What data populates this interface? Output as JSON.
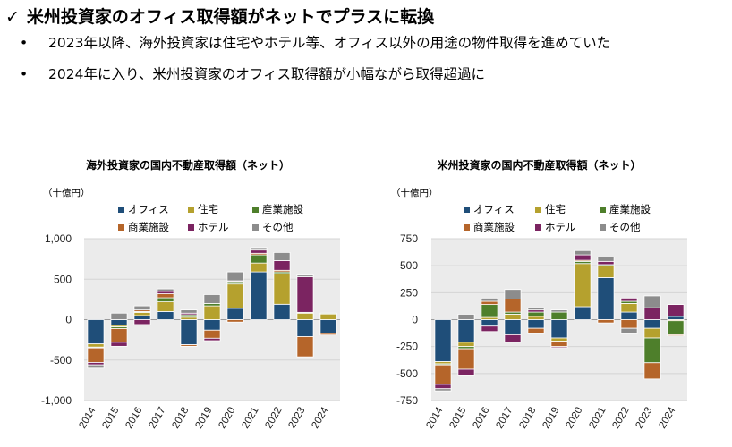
{
  "headline": {
    "check": "✓",
    "text": "米州投資家のオフィス取得額がネットでプラスに転換"
  },
  "bullets": [
    "2023年以降、海外投資家は住宅やホテル等、オフィス以外の用途の物件取得を進めていた",
    "2024年に入り、米州投資家のオフィス取得額が小幅ながら取得超過に"
  ],
  "bullet_marker": "•",
  "colors": {
    "office": "#1f4e79",
    "residential": "#b5a12e",
    "industrial": "#4e7f2b",
    "retail": "#b5652a",
    "hotel": "#7b2461",
    "other": "#8c8c8c",
    "plot_bg": "#ebebeb"
  },
  "chart_data": [
    {
      "type": "bar",
      "stacked": true,
      "title": "海外投資家の国内不動産取得額（ネット）",
      "unit": "（十億円）",
      "categories": [
        "2014",
        "2015",
        "2016",
        "2017",
        "2018",
        "2019",
        "2020",
        "2021",
        "2022",
        "2023",
        "2024"
      ],
      "ylim": [
        -1000,
        1000
      ],
      "ytick_values": [
        -1000,
        -500,
        0,
        500,
        1000
      ],
      "ytick_labels": [
        "-1,000",
        "-500",
        "0",
        "500",
        "1,000"
      ],
      "legend": [
        "オフィス",
        "住宅",
        "産業施設",
        "商業施設",
        "ホテル",
        "その他"
      ],
      "series": [
        {
          "name": "オフィス",
          "key": "office",
          "values": [
            -300,
            -70,
            50,
            100,
            -310,
            -130,
            140,
            590,
            190,
            -210,
            -170
          ]
        },
        {
          "name": "住宅",
          "key": "residential",
          "values": [
            -40,
            -20,
            40,
            120,
            30,
            170,
            300,
            110,
            380,
            80,
            70
          ]
        },
        {
          "name": "産業施設",
          "key": "industrial",
          "values": [
            -10,
            -20,
            10,
            50,
            30,
            30,
            30,
            100,
            20,
            10,
            10
          ]
        },
        {
          "name": "商業施設",
          "key": "retail",
          "values": [
            -180,
            -170,
            20,
            50,
            -20,
            -100,
            -30,
            20,
            20,
            -250,
            -20
          ]
        },
        {
          "name": "ホテル",
          "key": "hotel",
          "values": [
            -30,
            -50,
            -60,
            30,
            20,
            -30,
            10,
            40,
            120,
            440,
            0
          ]
        },
        {
          "name": "その他",
          "key": "other",
          "values": [
            -40,
            80,
            50,
            30,
            40,
            110,
            110,
            30,
            100,
            20,
            0
          ]
        }
      ]
    },
    {
      "type": "bar",
      "stacked": true,
      "title": "米州投資家の国内不動産取得額（ネット）",
      "unit": "（十億円）",
      "categories": [
        "2014",
        "2015",
        "2016",
        "2017",
        "2018",
        "2019",
        "2020",
        "2021",
        "2022",
        "2023",
        "2024"
      ],
      "ylim": [
        -750,
        750
      ],
      "ytick_values": [
        -750,
        -500,
        -250,
        0,
        250,
        500,
        750
      ],
      "ytick_labels": [
        "-750",
        "-500",
        "-250",
        "0",
        "250",
        "500",
        "750"
      ],
      "legend": [
        "オフィス",
        "住宅",
        "産業施設",
        "商業施設",
        "ホテル",
        "その他"
      ],
      "series": [
        {
          "name": "オフィス",
          "key": "office",
          "values": [
            -390,
            -210,
            -60,
            -140,
            -80,
            -170,
            120,
            390,
            70,
            -80,
            30
          ]
        },
        {
          "name": "住宅",
          "key": "residential",
          "values": [
            -20,
            -40,
            20,
            50,
            30,
            -30,
            400,
            110,
            80,
            -90,
            -10
          ]
        },
        {
          "name": "産業施設",
          "key": "industrial",
          "values": [
            -10,
            -20,
            120,
            20,
            40,
            70,
            20,
            10,
            20,
            -230,
            -130
          ]
        },
        {
          "name": "商業施設",
          "key": "retail",
          "values": [
            -180,
            -190,
            30,
            120,
            -50,
            -50,
            10,
            -30,
            -80,
            -150,
            -10
          ]
        },
        {
          "name": "ホテル",
          "key": "hotel",
          "values": [
            -40,
            -60,
            -50,
            -70,
            20,
            -10,
            50,
            30,
            30,
            110,
            110
          ]
        },
        {
          "name": "その他",
          "key": "other",
          "values": [
            -20,
            50,
            30,
            90,
            20,
            20,
            40,
            40,
            -50,
            110,
            0
          ]
        }
      ]
    }
  ]
}
